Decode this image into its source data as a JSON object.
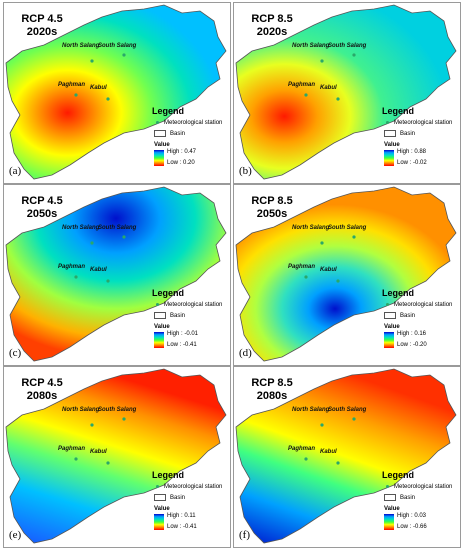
{
  "legend": {
    "title": "Legend",
    "station": "Meteorological station",
    "basin": "Basin",
    "value": "Value"
  },
  "places": {
    "north_salang": "North Salang",
    "south_salang": "South Salang",
    "paghman": "Paghman",
    "kabul": "Kabul"
  },
  "panels": [
    {
      "scenario": "RCP 4.5",
      "period": "2020s",
      "label": "(a)",
      "high": "High : 0.47",
      "low": "Low : 0.20"
    },
    {
      "scenario": "RCP 8.5",
      "period": "2020s",
      "label": "(b)",
      "high": "High : 0.88",
      "low": "Low : -0.02"
    },
    {
      "scenario": "RCP 4.5",
      "period": "2050s",
      "label": "(c)",
      "high": "High : -0.01",
      "low": "Low : -0.41"
    },
    {
      "scenario": "RCP 8.5",
      "period": "2050s",
      "label": "(d)",
      "high": "High : 0.16",
      "low": "Low : -0.20"
    },
    {
      "scenario": "RCP 4.5",
      "period": "2080s",
      "label": "(e)",
      "high": "High : 0.11",
      "low": "Low : -0.41"
    },
    {
      "scenario": "RCP 8.5",
      "period": "2080s",
      "label": "(f)",
      "high": "High : 0.03",
      "low": "Low : -0.66"
    }
  ],
  "colors": {
    "high": "#0000cc",
    "low": "#ff0000",
    "station": "#2aa86a"
  }
}
